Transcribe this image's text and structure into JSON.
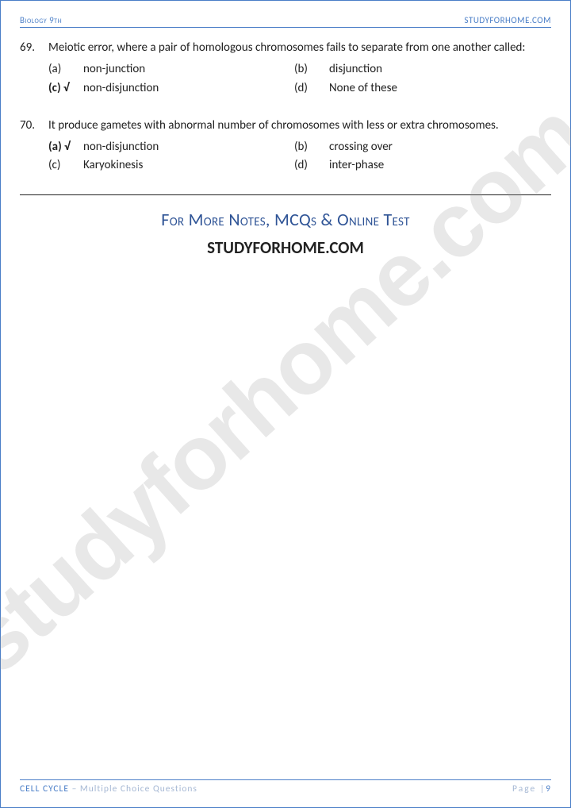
{
  "header": {
    "left": "Biology 9th",
    "right": "STUDYFORHOME.COM"
  },
  "watermark": "studyforhome.com",
  "questions": [
    {
      "num": "69.",
      "stem": "Meiotic error, where a pair of homologous chromosomes fails to separate from one another called:",
      "options": {
        "a": {
          "letter": "(a)",
          "text": "non-junction",
          "correct": false
        },
        "b": {
          "letter": "(b)",
          "text": "disjunction",
          "correct": false
        },
        "c": {
          "letter": "(c) √",
          "text": "non-disjunction",
          "correct": true
        },
        "d": {
          "letter": "(d)",
          "text": "None of these",
          "correct": false
        }
      }
    },
    {
      "num": "70.",
      "stem": "It produce gametes with abnormal number of chromosomes with less or extra chromosomes.",
      "options": {
        "a": {
          "letter": "(a) √",
          "text": "non-disjunction",
          "correct": true
        },
        "b": {
          "letter": "(b)",
          "text": "crossing over",
          "correct": false
        },
        "c": {
          "letter": "(c)",
          "text": "Karyokinesis",
          "correct": false
        },
        "d": {
          "letter": "(d)",
          "text": "inter-phase",
          "correct": false
        }
      }
    }
  ],
  "promo": {
    "line1": "For More Notes, MCQs & Online Test",
    "line2": "STUDYFORHOME.COM"
  },
  "footer": {
    "topic": "CELL CYCLE",
    "subtitle": " – Multiple Choice Questions",
    "page_label": "Page |",
    "page_num": "9"
  }
}
